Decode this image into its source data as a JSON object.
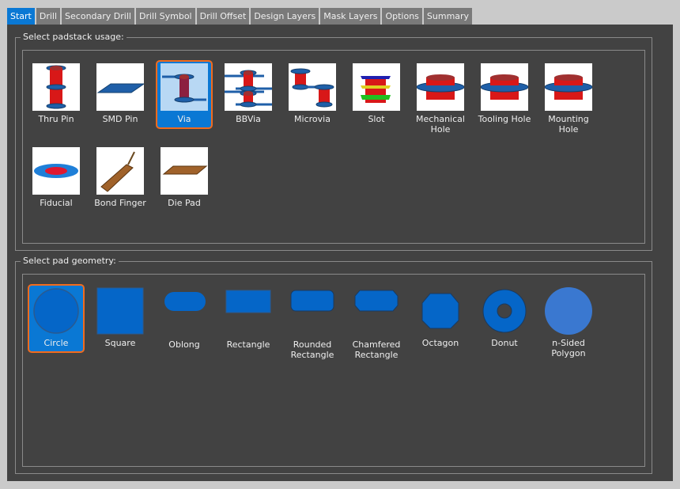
{
  "tabs": [
    {
      "label": "Start",
      "active": true
    },
    {
      "label": "Drill"
    },
    {
      "label": "Secondary Drill"
    },
    {
      "label": "Drill Symbol"
    },
    {
      "label": "Drill Offset"
    },
    {
      "label": "Design Layers"
    },
    {
      "label": "Mask Layers"
    },
    {
      "label": "Options"
    },
    {
      "label": "Summary"
    }
  ],
  "usage": {
    "title": "Select padstack usage:",
    "selected": "Via",
    "items": [
      {
        "label": "Thru Pin",
        "icon": "thru-pin"
      },
      {
        "label": "SMD Pin",
        "icon": "smd-pin"
      },
      {
        "label": "Via",
        "icon": "via"
      },
      {
        "label": "BBVia",
        "icon": "bbvia"
      },
      {
        "label": "Microvia",
        "icon": "microvia"
      },
      {
        "label": "Slot",
        "icon": "slot"
      },
      {
        "label": "Mechanical Hole",
        "icon": "hole"
      },
      {
        "label": "Tooling Hole",
        "icon": "hole"
      },
      {
        "label": "Mounting Hole",
        "icon": "hole"
      },
      {
        "label": "Fiducial",
        "icon": "fiducial"
      },
      {
        "label": "Bond Finger",
        "icon": "bond-finger"
      },
      {
        "label": "Die Pad",
        "icon": "die-pad"
      }
    ]
  },
  "geometry": {
    "title": "Select pad geometry:",
    "selected": "Circle",
    "items": [
      {
        "label": "Circle",
        "icon": "circle"
      },
      {
        "label": "Square",
        "icon": "square"
      },
      {
        "label": "Oblong",
        "icon": "oblong"
      },
      {
        "label": "Rectangle",
        "icon": "rectangle"
      },
      {
        "label": "Rounded Rectangle",
        "icon": "rounded-rectangle"
      },
      {
        "label": "Chamfered Rectangle",
        "icon": "chamfered-rectangle"
      },
      {
        "label": "Octagon",
        "icon": "octagon"
      },
      {
        "label": "Donut",
        "icon": "donut"
      },
      {
        "label": "n-Sided Polygon",
        "icon": "polygon"
      }
    ]
  },
  "colors": {
    "accent": "#0a78d4",
    "selection_border": "#f26b1d",
    "pad_blue": "#0566c8",
    "drill_red": "#d81010"
  }
}
